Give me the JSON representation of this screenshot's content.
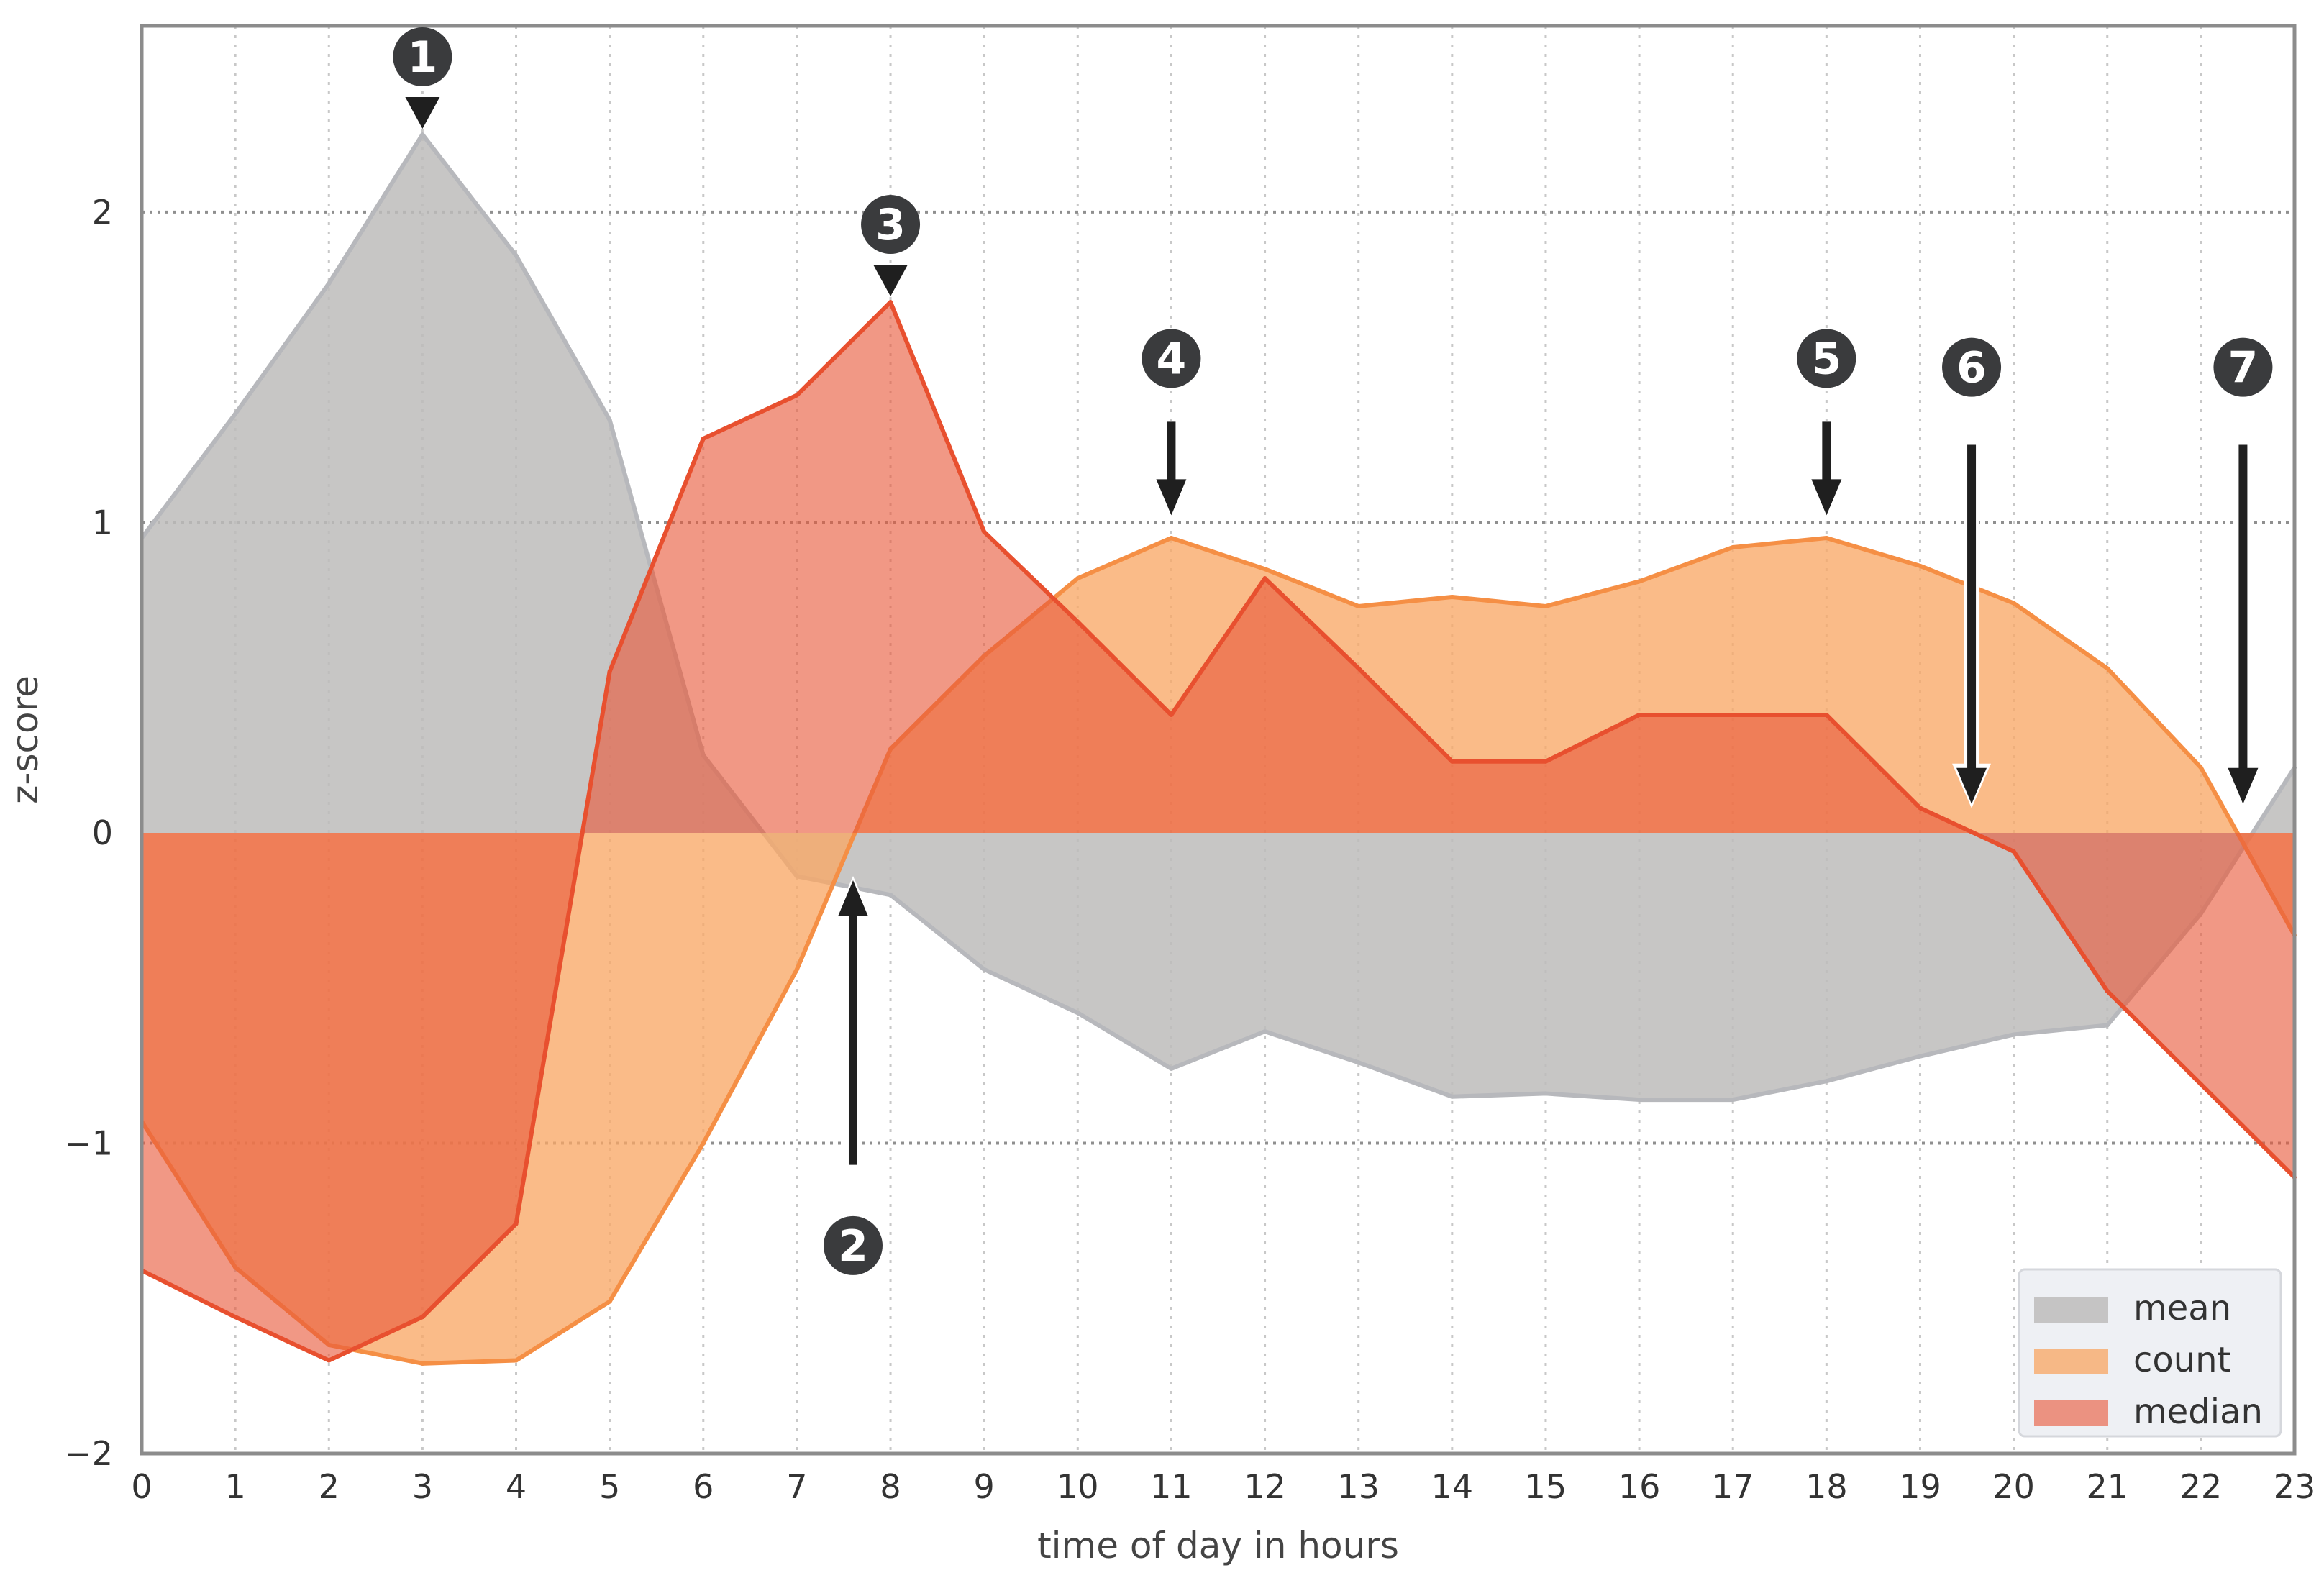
{
  "chart_data": {
    "type": "area",
    "xlabel": "time of day in hours",
    "ylabel": "z-score",
    "xlim": [
      0,
      23
    ],
    "ylim": [
      -2,
      2.6
    ],
    "x": [
      0,
      1,
      2,
      3,
      4,
      5,
      6,
      7,
      8,
      9,
      10,
      11,
      12,
      13,
      14,
      15,
      16,
      17,
      18,
      19,
      20,
      21,
      22,
      23
    ],
    "x_ticks": [
      "0",
      "1",
      "2",
      "3",
      "4",
      "5",
      "6",
      "7",
      "8",
      "9",
      "10",
      "11",
      "12",
      "13",
      "14",
      "15",
      "16",
      "17",
      "18",
      "19",
      "20",
      "21",
      "22",
      "23"
    ],
    "y_ticks": [
      {
        "value": -2,
        "label": "−2"
      },
      {
        "value": -1,
        "label": "−1"
      },
      {
        "value": 0,
        "label": "0"
      },
      {
        "value": 1,
        "label": "1"
      },
      {
        "value": 2,
        "label": "2"
      }
    ],
    "grid": true,
    "legend_position": "bottom-right",
    "series": [
      {
        "name": "mean",
        "fill": "#bdbcbb",
        "stroke": "#b7b8bc",
        "fill_opacity": 0.85,
        "values": [
          0.95,
          1.35,
          1.77,
          2.25,
          1.86,
          1.33,
          0.25,
          -0.14,
          -0.2,
          -0.44,
          -0.58,
          -0.76,
          -0.64,
          -0.74,
          -0.85,
          -0.84,
          -0.86,
          -0.86,
          -0.8,
          -0.72,
          -0.65,
          -0.62,
          -0.26,
          0.21
        ]
      },
      {
        "name": "count",
        "fill": "#f9a867",
        "stroke": "#f58f45",
        "fill_opacity": 0.78,
        "values": [
          -0.93,
          -1.4,
          -1.65,
          -1.71,
          -1.7,
          -1.51,
          -1.0,
          -0.44,
          0.27,
          0.57,
          0.82,
          0.95,
          0.85,
          0.73,
          0.76,
          0.73,
          0.81,
          0.92,
          0.95,
          0.86,
          0.74,
          0.53,
          0.21,
          -0.33
        ]
      },
      {
        "name": "median",
        "fill": "#e8593a",
        "stroke": "#e8502f",
        "fill_opacity": 0.62,
        "values": [
          -1.41,
          -1.56,
          -1.7,
          -1.56,
          -1.26,
          0.52,
          1.27,
          1.41,
          1.71,
          0.97,
          0.68,
          0.38,
          0.82,
          0.53,
          0.23,
          0.23,
          0.38,
          0.38,
          0.38,
          0.08,
          -0.06,
          -0.51,
          -0.81,
          -1.11
        ]
      }
    ],
    "annotations": [
      {
        "label": "1",
        "x": 3,
        "y": 2.25,
        "arrow": "triangle-down"
      },
      {
        "label": "2",
        "x": 7.6,
        "y": -0.13,
        "arrow": "up"
      },
      {
        "label": "3",
        "x": 8,
        "y": 1.71,
        "arrow": "triangle-down"
      },
      {
        "label": "4",
        "x": 11,
        "y": 1.0,
        "arrow": "down"
      },
      {
        "label": "5",
        "x": 18,
        "y": 1.0,
        "arrow": "down"
      },
      {
        "label": "6",
        "x": 19.55,
        "y": 0.07,
        "arrow": "down"
      },
      {
        "label": "7",
        "x": 22.45,
        "y": 0.07,
        "arrow": "down"
      }
    ]
  }
}
